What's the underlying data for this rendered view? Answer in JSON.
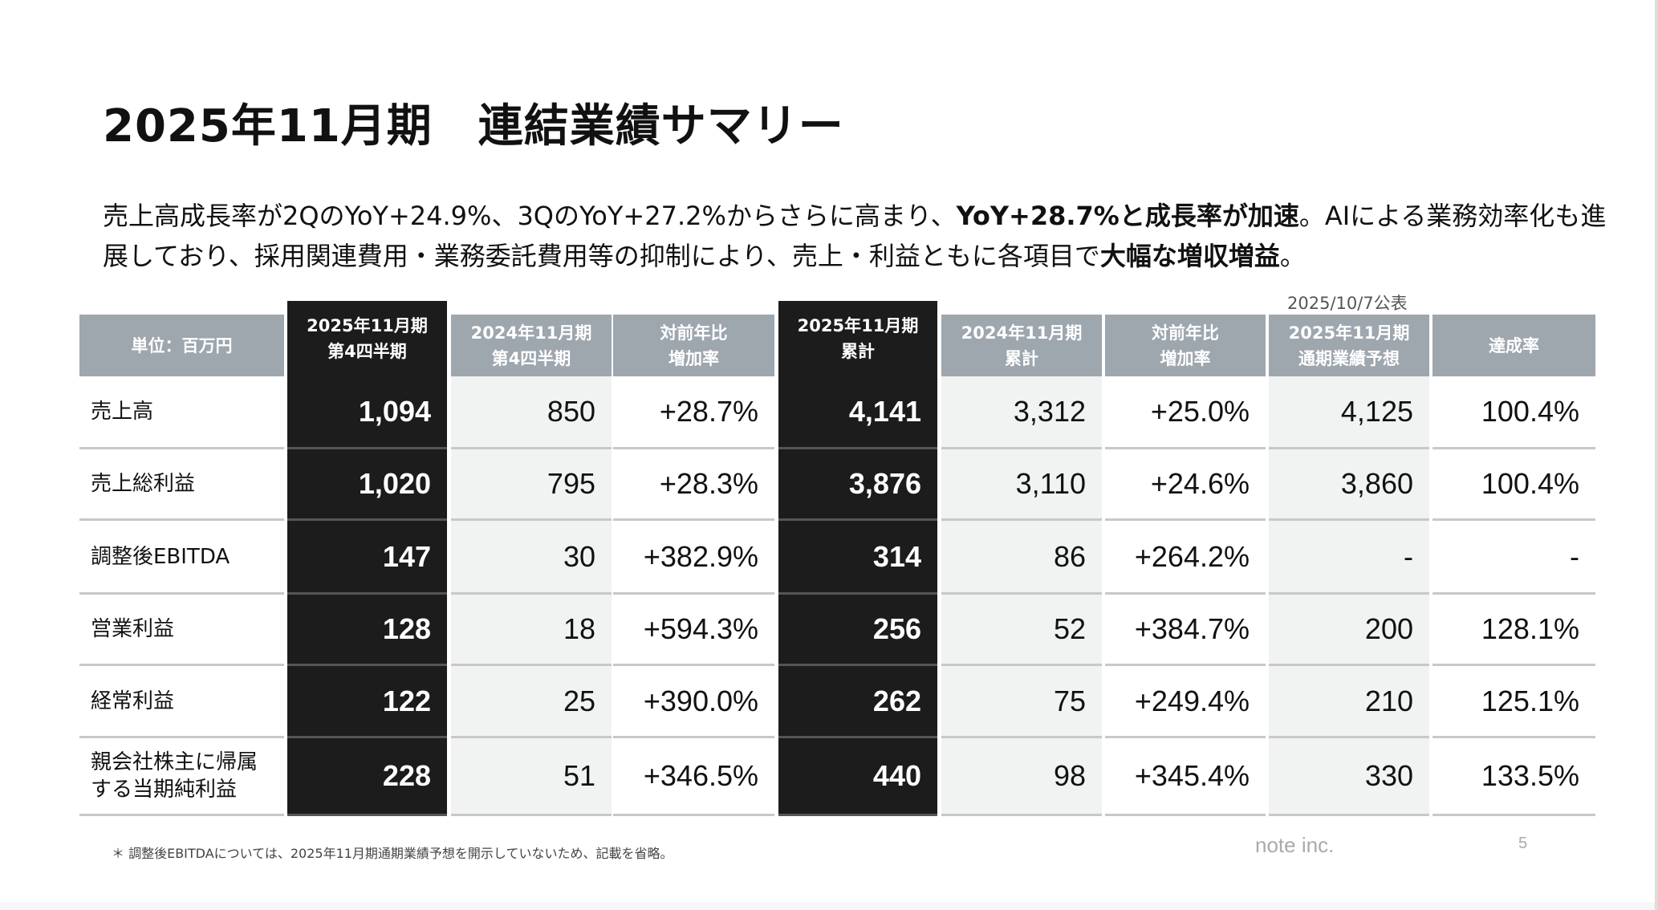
{
  "title": "2025年11月期　連結業績サマリー",
  "lead": {
    "part1": "売上高成長率が2QのYoY+24.9%、3QのYoY+27.2%からさらに高まり、",
    "bold1": "YoY+28.7%と成長率が加速",
    "part2": "。AIによる業務効率化も進展しており、採用関連費用・業務委託費用等の抑制により、売上・利益ともに各項目で",
    "bold2": "大幅な増収増益",
    "part3": "。"
  },
  "publish_note": "2025/10/7公表",
  "table": {
    "unit_header": "単位：百万円",
    "columns": [
      {
        "header": "2025年11月期\n第4四半期",
        "style": "dark"
      },
      {
        "header": "2024年11月期\n第4四半期",
        "style": "shade"
      },
      {
        "header": "対前年比\n増加率",
        "style": "plain"
      },
      {
        "header": "2025年11月期\n累計",
        "style": "dark"
      },
      {
        "header": "2024年11月期\n累計",
        "style": "shade"
      },
      {
        "header": "対前年比\n増加率",
        "style": "plain"
      },
      {
        "header": "2025年11月期\n通期業績予想",
        "style": "shade"
      },
      {
        "header": "達成率",
        "style": "plain"
      }
    ],
    "rows": [
      {
        "label": "売上高",
        "values": [
          "1,094",
          "850",
          "+28.7%",
          "4,141",
          "3,312",
          "+25.0%",
          "4,125",
          "100.4%"
        ]
      },
      {
        "label": "売上総利益",
        "values": [
          "1,020",
          "795",
          "+28.3%",
          "3,876",
          "3,110",
          "+24.6%",
          "3,860",
          "100.4%"
        ]
      },
      {
        "label": "調整後EBITDA",
        "values": [
          "147",
          "30",
          "+382.9%",
          "314",
          "86",
          "+264.2%",
          "-",
          "-"
        ]
      },
      {
        "label": "営業利益",
        "values": [
          "128",
          "18",
          "+594.3%",
          "256",
          "52",
          "+384.7%",
          "200",
          "128.1%"
        ]
      },
      {
        "label": "経常利益",
        "values": [
          "122",
          "25",
          "+390.0%",
          "262",
          "75",
          "+249.4%",
          "210",
          "125.1%"
        ]
      },
      {
        "label": "親会社株主に帰属\nする当期純利益",
        "values": [
          "228",
          "51",
          "+346.5%",
          "440",
          "98",
          "+345.4%",
          "330",
          "133.5%"
        ]
      }
    ]
  },
  "footnote": "＊ 調整後EBITDAについては、2025年11月期通期業績予想を開示していないため、記載を省略。",
  "brand": "note inc.",
  "page_number": "5",
  "colors": {
    "header_gray": "#9ea6ae",
    "dark": "#1c1c1c",
    "shade": "#f1f2f2"
  }
}
